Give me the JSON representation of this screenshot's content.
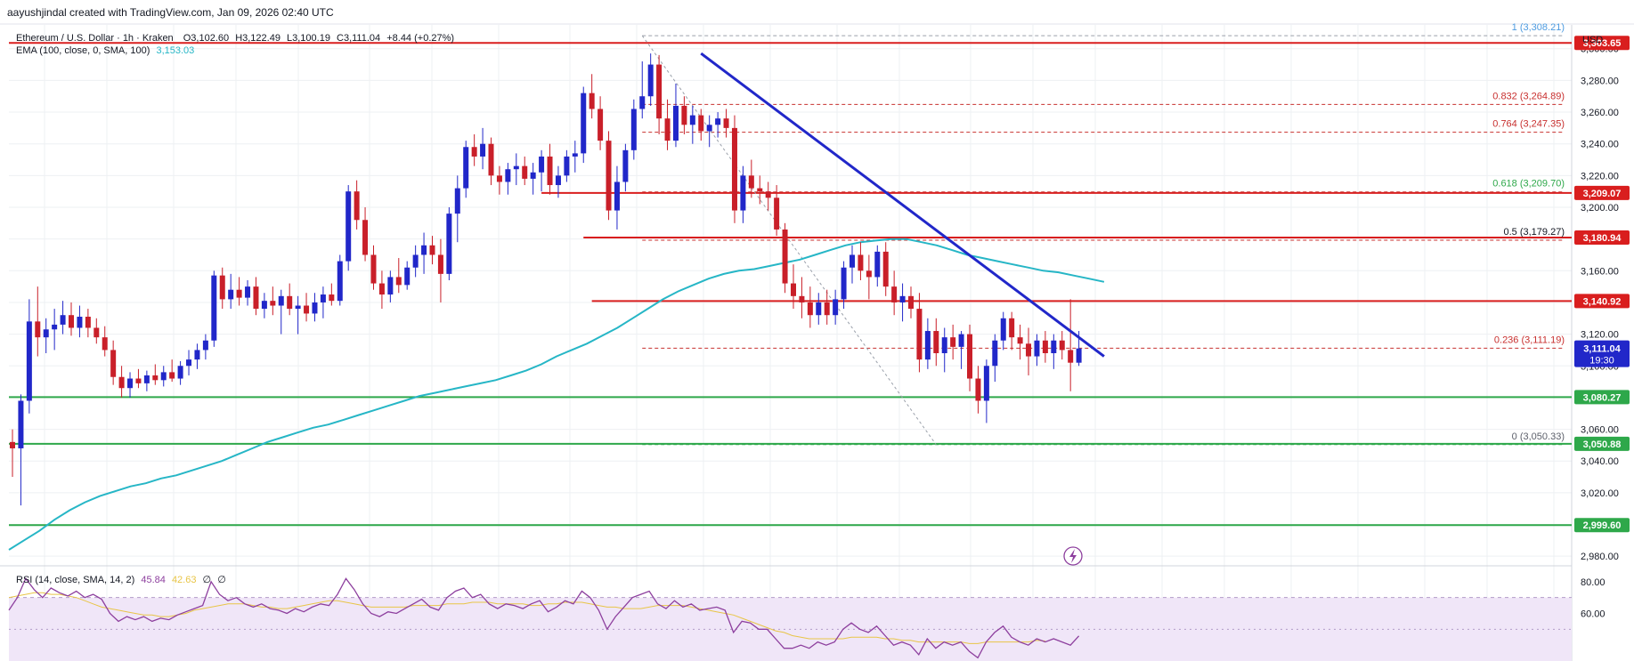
{
  "header": {
    "credit": "aayushjindal created with TradingView.com, Jan 09, 2026 02:40 UTC",
    "symbol": "Ethereum / U.S. Dollar · 1h · Kraken",
    "open": "O3,102.60",
    "high": "H3,122.49",
    "low": "L3,100.19",
    "close": "C3,111.04",
    "change": "+8.44 (+0.27%)",
    "ema_label": "EMA (100, close, 0, SMA, 100)",
    "ema_value": "3,153.03",
    "rsi_label": "RSI (14, close, SMA, 14, 2)",
    "rsi_value": "45.84",
    "rsi_ma_value": "42.63",
    "rsi_extra_1": "∅",
    "rsi_extra_2": "∅"
  },
  "colors": {
    "up": "#2127c9",
    "down": "#c91f29",
    "ema": "#26b6c6",
    "resistance": "#d91e1e",
    "support": "#2ea84a",
    "trendline": "#2127c9",
    "fib": "#c8302f",
    "fib_top": "#4d9be0",
    "fib_mid": "#2ea84a",
    "rsi": "#8d3f9e",
    "rsi_ma": "#e8c547",
    "rsi_band": "#f0e6f8"
  },
  "chart_data": {
    "type": "candlestick",
    "y_axis_label": "USD",
    "y_ticks": [
      "3,300.00",
      "3,280.00",
      "3,260.00",
      "3,240.00",
      "3,220.00",
      "3,200.00",
      "3,180.00",
      "3,160.00",
      "3,140.00",
      "3,120.00",
      "3,100.00",
      "3,080.00",
      "3,060.00",
      "3,040.00",
      "3,020.00",
      "3,000.00",
      "2,980.00"
    ],
    "ylim": [
      2970,
      3315
    ],
    "candles": [
      [
        3052,
        3060,
        3030,
        3048
      ],
      [
        3048,
        3082,
        3012,
        3078
      ],
      [
        3078,
        3142,
        3070,
        3128
      ],
      [
        3128,
        3150,
        3106,
        3118
      ],
      [
        3118,
        3130,
        3108,
        3123
      ],
      [
        3123,
        3136,
        3110,
        3126
      ],
      [
        3126,
        3141,
        3120,
        3132
      ],
      [
        3132,
        3140,
        3119,
        3124
      ],
      [
        3124,
        3138,
        3118,
        3131
      ],
      [
        3131,
        3136,
        3118,
        3124
      ],
      [
        3124,
        3130,
        3114,
        3118
      ],
      [
        3118,
        3125,
        3106,
        3110
      ],
      [
        3110,
        3116,
        3088,
        3093
      ],
      [
        3093,
        3100,
        3080,
        3086
      ],
      [
        3086,
        3096,
        3080,
        3092
      ],
      [
        3092,
        3098,
        3086,
        3089
      ],
      [
        3089,
        3097,
        3084,
        3094
      ],
      [
        3094,
        3101,
        3088,
        3091
      ],
      [
        3091,
        3100,
        3087,
        3096
      ],
      [
        3096,
        3104,
        3090,
        3092
      ],
      [
        3092,
        3103,
        3088,
        3100
      ],
      [
        3100,
        3110,
        3094,
        3104
      ],
      [
        3104,
        3114,
        3098,
        3110
      ],
      [
        3110,
        3120,
        3104,
        3116
      ],
      [
        3116,
        3160,
        3112,
        3157
      ],
      [
        3157,
        3162,
        3136,
        3142
      ],
      [
        3142,
        3158,
        3136,
        3148
      ],
      [
        3148,
        3156,
        3138,
        3143
      ],
      [
        3143,
        3154,
        3138,
        3150
      ],
      [
        3150,
        3156,
        3132,
        3136
      ],
      [
        3136,
        3146,
        3130,
        3141
      ],
      [
        3141,
        3150,
        3132,
        3138
      ],
      [
        3138,
        3148,
        3120,
        3144
      ],
      [
        3144,
        3152,
        3132,
        3136
      ],
      [
        3136,
        3144,
        3120,
        3138
      ],
      [
        3138,
        3146,
        3128,
        3133
      ],
      [
        3133,
        3146,
        3128,
        3140
      ],
      [
        3140,
        3150,
        3130,
        3145
      ],
      [
        3145,
        3152,
        3138,
        3141
      ],
      [
        3141,
        3170,
        3138,
        3166
      ],
      [
        3166,
        3214,
        3160,
        3210
      ],
      [
        3210,
        3217,
        3186,
        3192
      ],
      [
        3192,
        3200,
        3166,
        3170
      ],
      [
        3170,
        3176,
        3148,
        3152
      ],
      [
        3152,
        3160,
        3136,
        3145
      ],
      [
        3145,
        3160,
        3140,
        3156
      ],
      [
        3156,
        3168,
        3146,
        3151
      ],
      [
        3151,
        3166,
        3148,
        3162
      ],
      [
        3162,
        3176,
        3156,
        3170
      ],
      [
        3170,
        3184,
        3158,
        3176
      ],
      [
        3176,
        3182,
        3164,
        3170
      ],
      [
        3170,
        3180,
        3140,
        3158
      ],
      [
        3158,
        3200,
        3154,
        3196
      ],
      [
        3196,
        3220,
        3178,
        3212
      ],
      [
        3212,
        3242,
        3206,
        3238
      ],
      [
        3238,
        3246,
        3226,
        3232
      ],
      [
        3232,
        3250,
        3224,
        3240
      ],
      [
        3240,
        3244,
        3214,
        3220
      ],
      [
        3220,
        3226,
        3208,
        3216
      ],
      [
        3216,
        3228,
        3208,
        3224
      ],
      [
        3224,
        3234,
        3214,
        3226
      ],
      [
        3226,
        3232,
        3214,
        3218
      ],
      [
        3218,
        3228,
        3208,
        3222
      ],
      [
        3222,
        3236,
        3210,
        3232
      ],
      [
        3232,
        3240,
        3208,
        3214
      ],
      [
        3214,
        3226,
        3206,
        3220
      ],
      [
        3220,
        3236,
        3216,
        3232
      ],
      [
        3232,
        3242,
        3222,
        3234
      ],
      [
        3234,
        3276,
        3228,
        3272
      ],
      [
        3272,
        3284,
        3256,
        3262
      ],
      [
        3262,
        3270,
        3236,
        3242
      ],
      [
        3242,
        3248,
        3192,
        3198
      ],
      [
        3198,
        3226,
        3186,
        3216
      ],
      [
        3216,
        3240,
        3210,
        3236
      ],
      [
        3236,
        3268,
        3230,
        3262
      ],
      [
        3262,
        3292,
        3256,
        3270
      ],
      [
        3270,
        3297,
        3264,
        3290
      ],
      [
        3290,
        3296,
        3246,
        3256
      ],
      [
        3256,
        3268,
        3236,
        3242
      ],
      [
        3242,
        3278,
        3238,
        3264
      ],
      [
        3264,
        3270,
        3246,
        3252
      ],
      [
        3252,
        3264,
        3240,
        3258
      ],
      [
        3258,
        3262,
        3242,
        3248
      ],
      [
        3248,
        3258,
        3238,
        3252
      ],
      [
        3252,
        3260,
        3244,
        3256
      ],
      [
        3256,
        3262,
        3244,
        3250
      ],
      [
        3250,
        3258,
        3190,
        3198
      ],
      [
        3198,
        3226,
        3190,
        3220
      ],
      [
        3220,
        3230,
        3206,
        3212
      ],
      [
        3212,
        3220,
        3202,
        3210
      ],
      [
        3210,
        3216,
        3198,
        3206
      ],
      [
        3206,
        3214,
        3182,
        3186
      ],
      [
        3186,
        3190,
        3146,
        3152
      ],
      [
        3152,
        3164,
        3136,
        3144
      ],
      [
        3144,
        3156,
        3130,
        3140
      ],
      [
        3140,
        3150,
        3124,
        3132
      ],
      [
        3132,
        3146,
        3126,
        3140
      ],
      [
        3140,
        3148,
        3126,
        3132
      ],
      [
        3132,
        3148,
        3126,
        3142
      ],
      [
        3142,
        3166,
        3136,
        3162
      ],
      [
        3162,
        3176,
        3152,
        3170
      ],
      [
        3170,
        3178,
        3154,
        3160
      ],
      [
        3160,
        3170,
        3142,
        3156
      ],
      [
        3156,
        3176,
        3150,
        3172
      ],
      [
        3172,
        3178,
        3144,
        3150
      ],
      [
        3150,
        3160,
        3132,
        3140
      ],
      [
        3140,
        3152,
        3128,
        3144
      ],
      [
        3144,
        3150,
        3130,
        3136
      ],
      [
        3136,
        3146,
        3096,
        3104
      ],
      [
        3104,
        3130,
        3098,
        3122
      ],
      [
        3122,
        3130,
        3100,
        3108
      ],
      [
        3108,
        3124,
        3096,
        3118
      ],
      [
        3118,
        3126,
        3104,
        3112
      ],
      [
        3112,
        3122,
        3098,
        3120
      ],
      [
        3120,
        3126,
        3084,
        3092
      ],
      [
        3092,
        3100,
        3070,
        3078
      ],
      [
        3078,
        3104,
        3064,
        3100
      ],
      [
        3100,
        3120,
        3090,
        3116
      ],
      [
        3116,
        3134,
        3110,
        3130
      ],
      [
        3130,
        3134,
        3110,
        3118
      ],
      [
        3118,
        3126,
        3104,
        3114
      ],
      [
        3114,
        3124,
        3094,
        3106
      ],
      [
        3106,
        3120,
        3100,
        3116
      ],
      [
        3116,
        3122,
        3102,
        3108
      ],
      [
        3108,
        3120,
        3098,
        3116
      ],
      [
        3116,
        3122,
        3104,
        3110
      ],
      [
        3110,
        3142,
        3084,
        3102
      ],
      [
        3102,
        3122,
        3100,
        3111
      ]
    ],
    "ema": [
      2984,
      2990,
      2996,
      3003,
      3009,
      3014,
      3018,
      3021,
      3024,
      3026,
      3029,
      3031,
      3034,
      3037,
      3040,
      3044,
      3048,
      3052,
      3055,
      3058,
      3061,
      3063,
      3066,
      3069,
      3072,
      3075,
      3078,
      3081,
      3083,
      3085,
      3087,
      3089,
      3091,
      3094,
      3097,
      3101,
      3106,
      3110,
      3114,
      3119,
      3124,
      3130,
      3136,
      3142,
      3147,
      3151,
      3155,
      3158,
      3160,
      3161,
      3163,
      3165,
      3167,
      3170,
      3173,
      3176,
      3178,
      3179,
      3180,
      3180,
      3178,
      3176,
      3173,
      3170,
      3168,
      3166,
      3164,
      3162,
      3160,
      3159,
      3157,
      3155,
      3153
    ],
    "ema_x_end_candle": 131,
    "resistance_levels": [
      {
        "value": 3303.65,
        "label": "3,303.65",
        "from_candle": 0
      },
      {
        "value": 3209.07,
        "label": "3,209.07",
        "from_candle": 64
      },
      {
        "value": 3180.94,
        "label": "3,180.94",
        "from_candle": 69
      },
      {
        "value": 3140.92,
        "label": "3,140.92",
        "from_candle": 70
      }
    ],
    "support_levels": [
      {
        "value": 3080.27,
        "label": "3,080.27"
      },
      {
        "value": 3050.88,
        "label": "3,050.88"
      },
      {
        "value": 2999.6,
        "label": "2,999.60"
      }
    ],
    "current_price": {
      "value": 3111.04,
      "label": "3,111.04",
      "timer": "19:30"
    },
    "fib_levels": [
      {
        "ratio": "1",
        "value": 3308.21,
        "label": "1 (3,308.21)"
      },
      {
        "ratio": "0.832",
        "value": 3264.89,
        "label": "0.832 (3,264.89)"
      },
      {
        "ratio": "0.764",
        "value": 3247.35,
        "label": "0.764 (3,247.35)"
      },
      {
        "ratio": "0.618",
        "value": 3209.7,
        "label": "0.618 (3,209.70)"
      },
      {
        "ratio": "0.5",
        "value": 3179.27,
        "label": "0.5 (3,179.27)"
      },
      {
        "ratio": "0.236",
        "value": 3111.19,
        "label": "0.236 (3,111.19)"
      },
      {
        "ratio": "0",
        "value": 3050.33,
        "label": "0 (3,050.33)"
      }
    ],
    "fib_from_candle": 76,
    "trendline": {
      "from": [
        83,
        3297
      ],
      "to": [
        131,
        3106
      ]
    },
    "rsi_ticks": [
      "80.00",
      "60.00"
    ],
    "rsi": [
      62,
      70,
      82,
      75,
      70,
      76,
      73,
      71,
      74,
      70,
      72,
      69,
      60,
      55,
      58,
      56,
      58,
      55,
      57,
      56,
      59,
      61,
      63,
      65,
      80,
      72,
      68,
      70,
      66,
      64,
      66,
      63,
      62,
      60,
      63,
      61,
      64,
      66,
      65,
      72,
      82,
      75,
      66,
      60,
      58,
      61,
      60,
      63,
      66,
      69,
      64,
      62,
      70,
      74,
      76,
      70,
      72,
      66,
      63,
      66,
      65,
      63,
      66,
      68,
      61,
      64,
      68,
      66,
      74,
      70,
      62,
      50,
      58,
      64,
      70,
      72,
      74,
      66,
      63,
      68,
      64,
      66,
      62,
      63,
      64,
      62,
      48,
      55,
      54,
      50,
      50,
      44,
      38,
      38,
      40,
      38,
      42,
      40,
      42,
      50,
      54,
      50,
      48,
      52,
      46,
      40,
      42,
      40,
      34,
      44,
      38,
      42,
      40,
      42,
      36,
      32,
      42,
      48,
      52,
      45,
      42,
      40,
      44,
      42,
      44,
      42,
      40,
      45.84
    ],
    "rsi_ma": [
      70,
      71,
      72,
      73,
      73,
      72,
      72,
      71,
      70,
      68,
      66,
      64,
      63,
      62,
      61,
      60,
      59,
      59,
      58,
      58,
      59,
      60,
      62,
      63,
      64,
      65,
      66,
      66,
      66,
      65,
      64,
      64,
      63,
      63,
      64,
      65,
      66,
      67,
      68,
      68,
      67,
      66,
      65,
      64,
      64,
      64,
      64,
      64,
      65,
      65,
      65,
      65,
      66,
      66,
      66,
      67,
      67,
      67,
      66,
      66,
      66,
      66,
      65,
      65,
      66,
      66,
      67,
      67,
      67,
      66,
      65,
      64,
      64,
      63,
      63,
      63,
      64,
      65,
      65,
      65,
      65,
      64,
      63,
      62,
      61,
      60,
      59,
      57,
      55,
      53,
      51,
      49,
      48,
      46,
      45,
      44,
      44,
      44,
      44,
      44,
      45,
      45,
      45,
      45,
      44,
      44,
      43,
      43,
      42,
      42,
      42,
      42,
      42,
      42,
      41,
      41,
      42,
      42,
      42,
      42,
      42,
      42,
      43,
      42.63
    ]
  }
}
